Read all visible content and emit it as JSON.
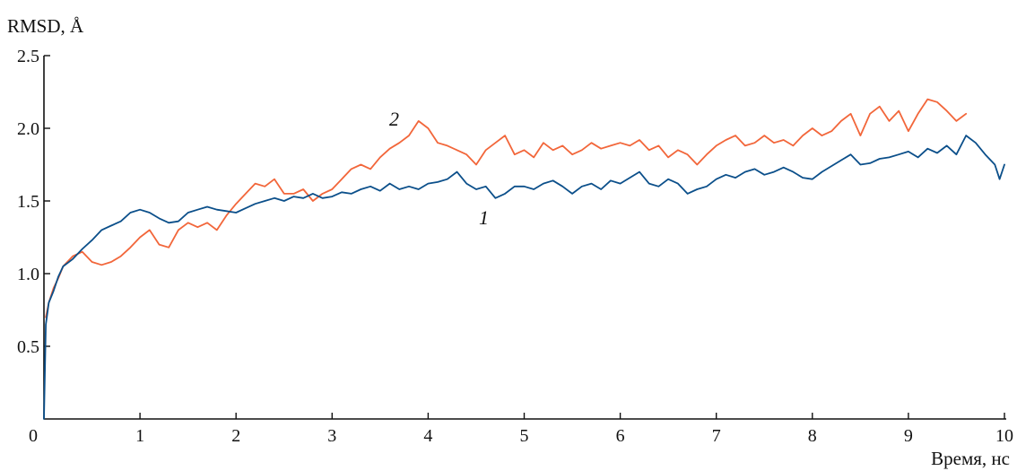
{
  "chart_data": {
    "type": "line",
    "title": "",
    "xlabel": "Время, нс",
    "ylabel": "RMSD, Å",
    "xlim": [
      0,
      10
    ],
    "ylim": [
      0,
      2.5
    ],
    "x_ticks": [
      "0",
      "1",
      "2",
      "3",
      "4",
      "5",
      "6",
      "7",
      "8",
      "9",
      "10"
    ],
    "y_ticks": [
      "0.5",
      "1.0",
      "1.5",
      "2.0",
      "2.5"
    ],
    "grid": false,
    "series": [
      {
        "name": "1",
        "color": "#0b4f8a",
        "x": [
          0.0,
          0.02,
          0.05,
          0.1,
          0.15,
          0.2,
          0.3,
          0.4,
          0.5,
          0.6,
          0.7,
          0.8,
          0.9,
          1.0,
          1.1,
          1.2,
          1.3,
          1.4,
          1.5,
          1.6,
          1.7,
          1.8,
          1.9,
          2.0,
          2.1,
          2.2,
          2.3,
          2.4,
          2.5,
          2.6,
          2.7,
          2.8,
          2.9,
          3.0,
          3.1,
          3.2,
          3.3,
          3.4,
          3.5,
          3.6,
          3.7,
          3.8,
          3.9,
          4.0,
          4.1,
          4.2,
          4.3,
          4.4,
          4.5,
          4.6,
          4.7,
          4.8,
          4.9,
          5.0,
          5.1,
          5.2,
          5.3,
          5.4,
          5.5,
          5.6,
          5.7,
          5.8,
          5.9,
          6.0,
          6.1,
          6.2,
          6.3,
          6.4,
          6.5,
          6.6,
          6.7,
          6.8,
          6.9,
          7.0,
          7.1,
          7.2,
          7.3,
          7.4,
          7.5,
          7.6,
          7.7,
          7.8,
          7.9,
          8.0,
          8.1,
          8.2,
          8.3,
          8.4,
          8.5,
          8.6,
          8.7,
          8.8,
          8.9,
          9.0,
          9.1,
          9.2,
          9.3,
          9.4,
          9.5,
          9.6,
          9.7,
          9.8,
          9.9,
          9.95,
          10.0
        ],
        "values": [
          0.0,
          0.65,
          0.8,
          0.88,
          0.98,
          1.05,
          1.1,
          1.17,
          1.23,
          1.3,
          1.33,
          1.36,
          1.42,
          1.44,
          1.42,
          1.38,
          1.35,
          1.36,
          1.42,
          1.44,
          1.46,
          1.44,
          1.43,
          1.42,
          1.45,
          1.48,
          1.5,
          1.52,
          1.5,
          1.53,
          1.52,
          1.55,
          1.52,
          1.53,
          1.56,
          1.55,
          1.58,
          1.6,
          1.57,
          1.62,
          1.58,
          1.6,
          1.58,
          1.62,
          1.63,
          1.65,
          1.7,
          1.62,
          1.58,
          1.6,
          1.52,
          1.55,
          1.6,
          1.6,
          1.58,
          1.62,
          1.64,
          1.6,
          1.55,
          1.6,
          1.62,
          1.58,
          1.64,
          1.62,
          1.66,
          1.7,
          1.62,
          1.6,
          1.65,
          1.62,
          1.55,
          1.58,
          1.6,
          1.65,
          1.68,
          1.66,
          1.7,
          1.72,
          1.68,
          1.7,
          1.73,
          1.7,
          1.66,
          1.65,
          1.7,
          1.74,
          1.78,
          1.82,
          1.75,
          1.76,
          1.79,
          1.8,
          1.82,
          1.84,
          1.8,
          1.86,
          1.83,
          1.88,
          1.82,
          1.95,
          1.9,
          1.82,
          1.75,
          1.65,
          1.75
        ]
      },
      {
        "name": "2",
        "color": "#f2663a",
        "x": [
          0.02,
          0.05,
          0.1,
          0.15,
          0.2,
          0.3,
          0.4,
          0.5,
          0.6,
          0.7,
          0.8,
          0.9,
          1.0,
          1.1,
          1.2,
          1.3,
          1.4,
          1.5,
          1.6,
          1.7,
          1.8,
          1.9,
          2.0,
          2.1,
          2.2,
          2.3,
          2.4,
          2.5,
          2.6,
          2.7,
          2.8,
          2.9,
          3.0,
          3.1,
          3.2,
          3.3,
          3.4,
          3.5,
          3.6,
          3.7,
          3.8,
          3.9,
          4.0,
          4.1,
          4.2,
          4.3,
          4.4,
          4.5,
          4.6,
          4.7,
          4.8,
          4.9,
          5.0,
          5.1,
          5.2,
          5.3,
          5.4,
          5.5,
          5.6,
          5.7,
          5.8,
          5.9,
          6.0,
          6.1,
          6.2,
          6.3,
          6.4,
          6.5,
          6.6,
          6.7,
          6.8,
          6.9,
          7.0,
          7.1,
          7.2,
          7.3,
          7.4,
          7.5,
          7.6,
          7.7,
          7.8,
          7.9,
          8.0,
          8.1,
          8.2,
          8.3,
          8.4,
          8.5,
          8.6,
          8.7,
          8.8,
          8.9,
          9.0,
          9.1,
          9.2,
          9.3,
          9.4,
          9.5,
          9.6
        ],
        "values": [
          0.7,
          0.8,
          0.9,
          0.97,
          1.05,
          1.12,
          1.15,
          1.08,
          1.06,
          1.08,
          1.12,
          1.18,
          1.25,
          1.3,
          1.2,
          1.18,
          1.3,
          1.35,
          1.32,
          1.35,
          1.3,
          1.4,
          1.48,
          1.55,
          1.62,
          1.6,
          1.65,
          1.55,
          1.55,
          1.58,
          1.5,
          1.55,
          1.58,
          1.65,
          1.72,
          1.75,
          1.72,
          1.8,
          1.86,
          1.9,
          1.95,
          2.05,
          2.0,
          1.9,
          1.88,
          1.85,
          1.82,
          1.75,
          1.85,
          1.9,
          1.95,
          1.82,
          1.85,
          1.8,
          1.9,
          1.85,
          1.88,
          1.82,
          1.85,
          1.9,
          1.86,
          1.88,
          1.9,
          1.88,
          1.92,
          1.85,
          1.88,
          1.8,
          1.85,
          1.82,
          1.75,
          1.82,
          1.88,
          1.92,
          1.95,
          1.88,
          1.9,
          1.95,
          1.9,
          1.92,
          1.88,
          1.95,
          2.0,
          1.95,
          1.98,
          2.05,
          2.1,
          1.95,
          2.1,
          2.15,
          2.05,
          2.12,
          1.98,
          2.1,
          2.2,
          2.18,
          2.12,
          2.05,
          2.1
        ]
      }
    ]
  }
}
